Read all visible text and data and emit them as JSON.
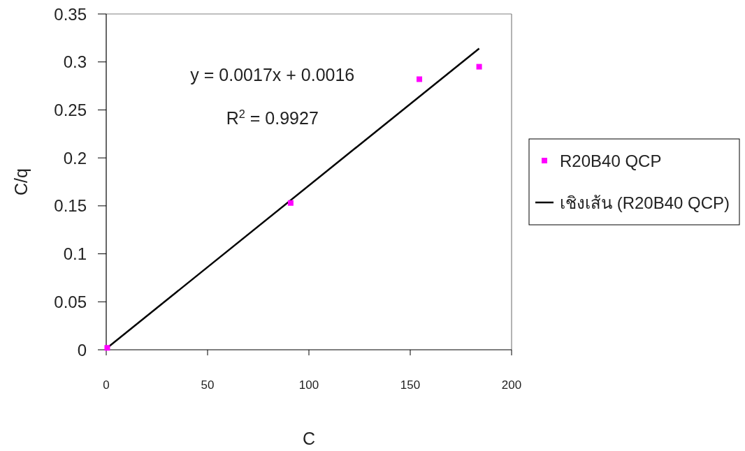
{
  "chart_data": {
    "type": "scatter",
    "xlabel": "C",
    "ylabel": "C/q",
    "annotations": [
      "y = 0.0017x + 0.0016",
      "R$^{2}$ = 0.9927"
    ],
    "xlim": [
      0,
      200
    ],
    "xticks": [
      0,
      50,
      100,
      150,
      200
    ],
    "ylim": [
      0,
      0.35
    ],
    "yticks": [
      0,
      0.05,
      0.1,
      0.15,
      0.2,
      0.25,
      0.3,
      0.35
    ],
    "legend": "right",
    "series": [
      {
        "name": "R20B40 QCP",
        "marker": "square",
        "color": "#ff00ff",
        "x": [
          0.5,
          91,
          154.5,
          184
        ],
        "values": [
          0.002,
          0.153,
          0.282,
          0.295
        ]
      },
      {
        "name": "เชิงเส้น (R20B40 QCP)",
        "type": "line",
        "marker": "none",
        "color": "#000000",
        "x": [
          0.5,
          184
        ],
        "values": [
          0.002,
          0.314
        ]
      }
    ]
  }
}
